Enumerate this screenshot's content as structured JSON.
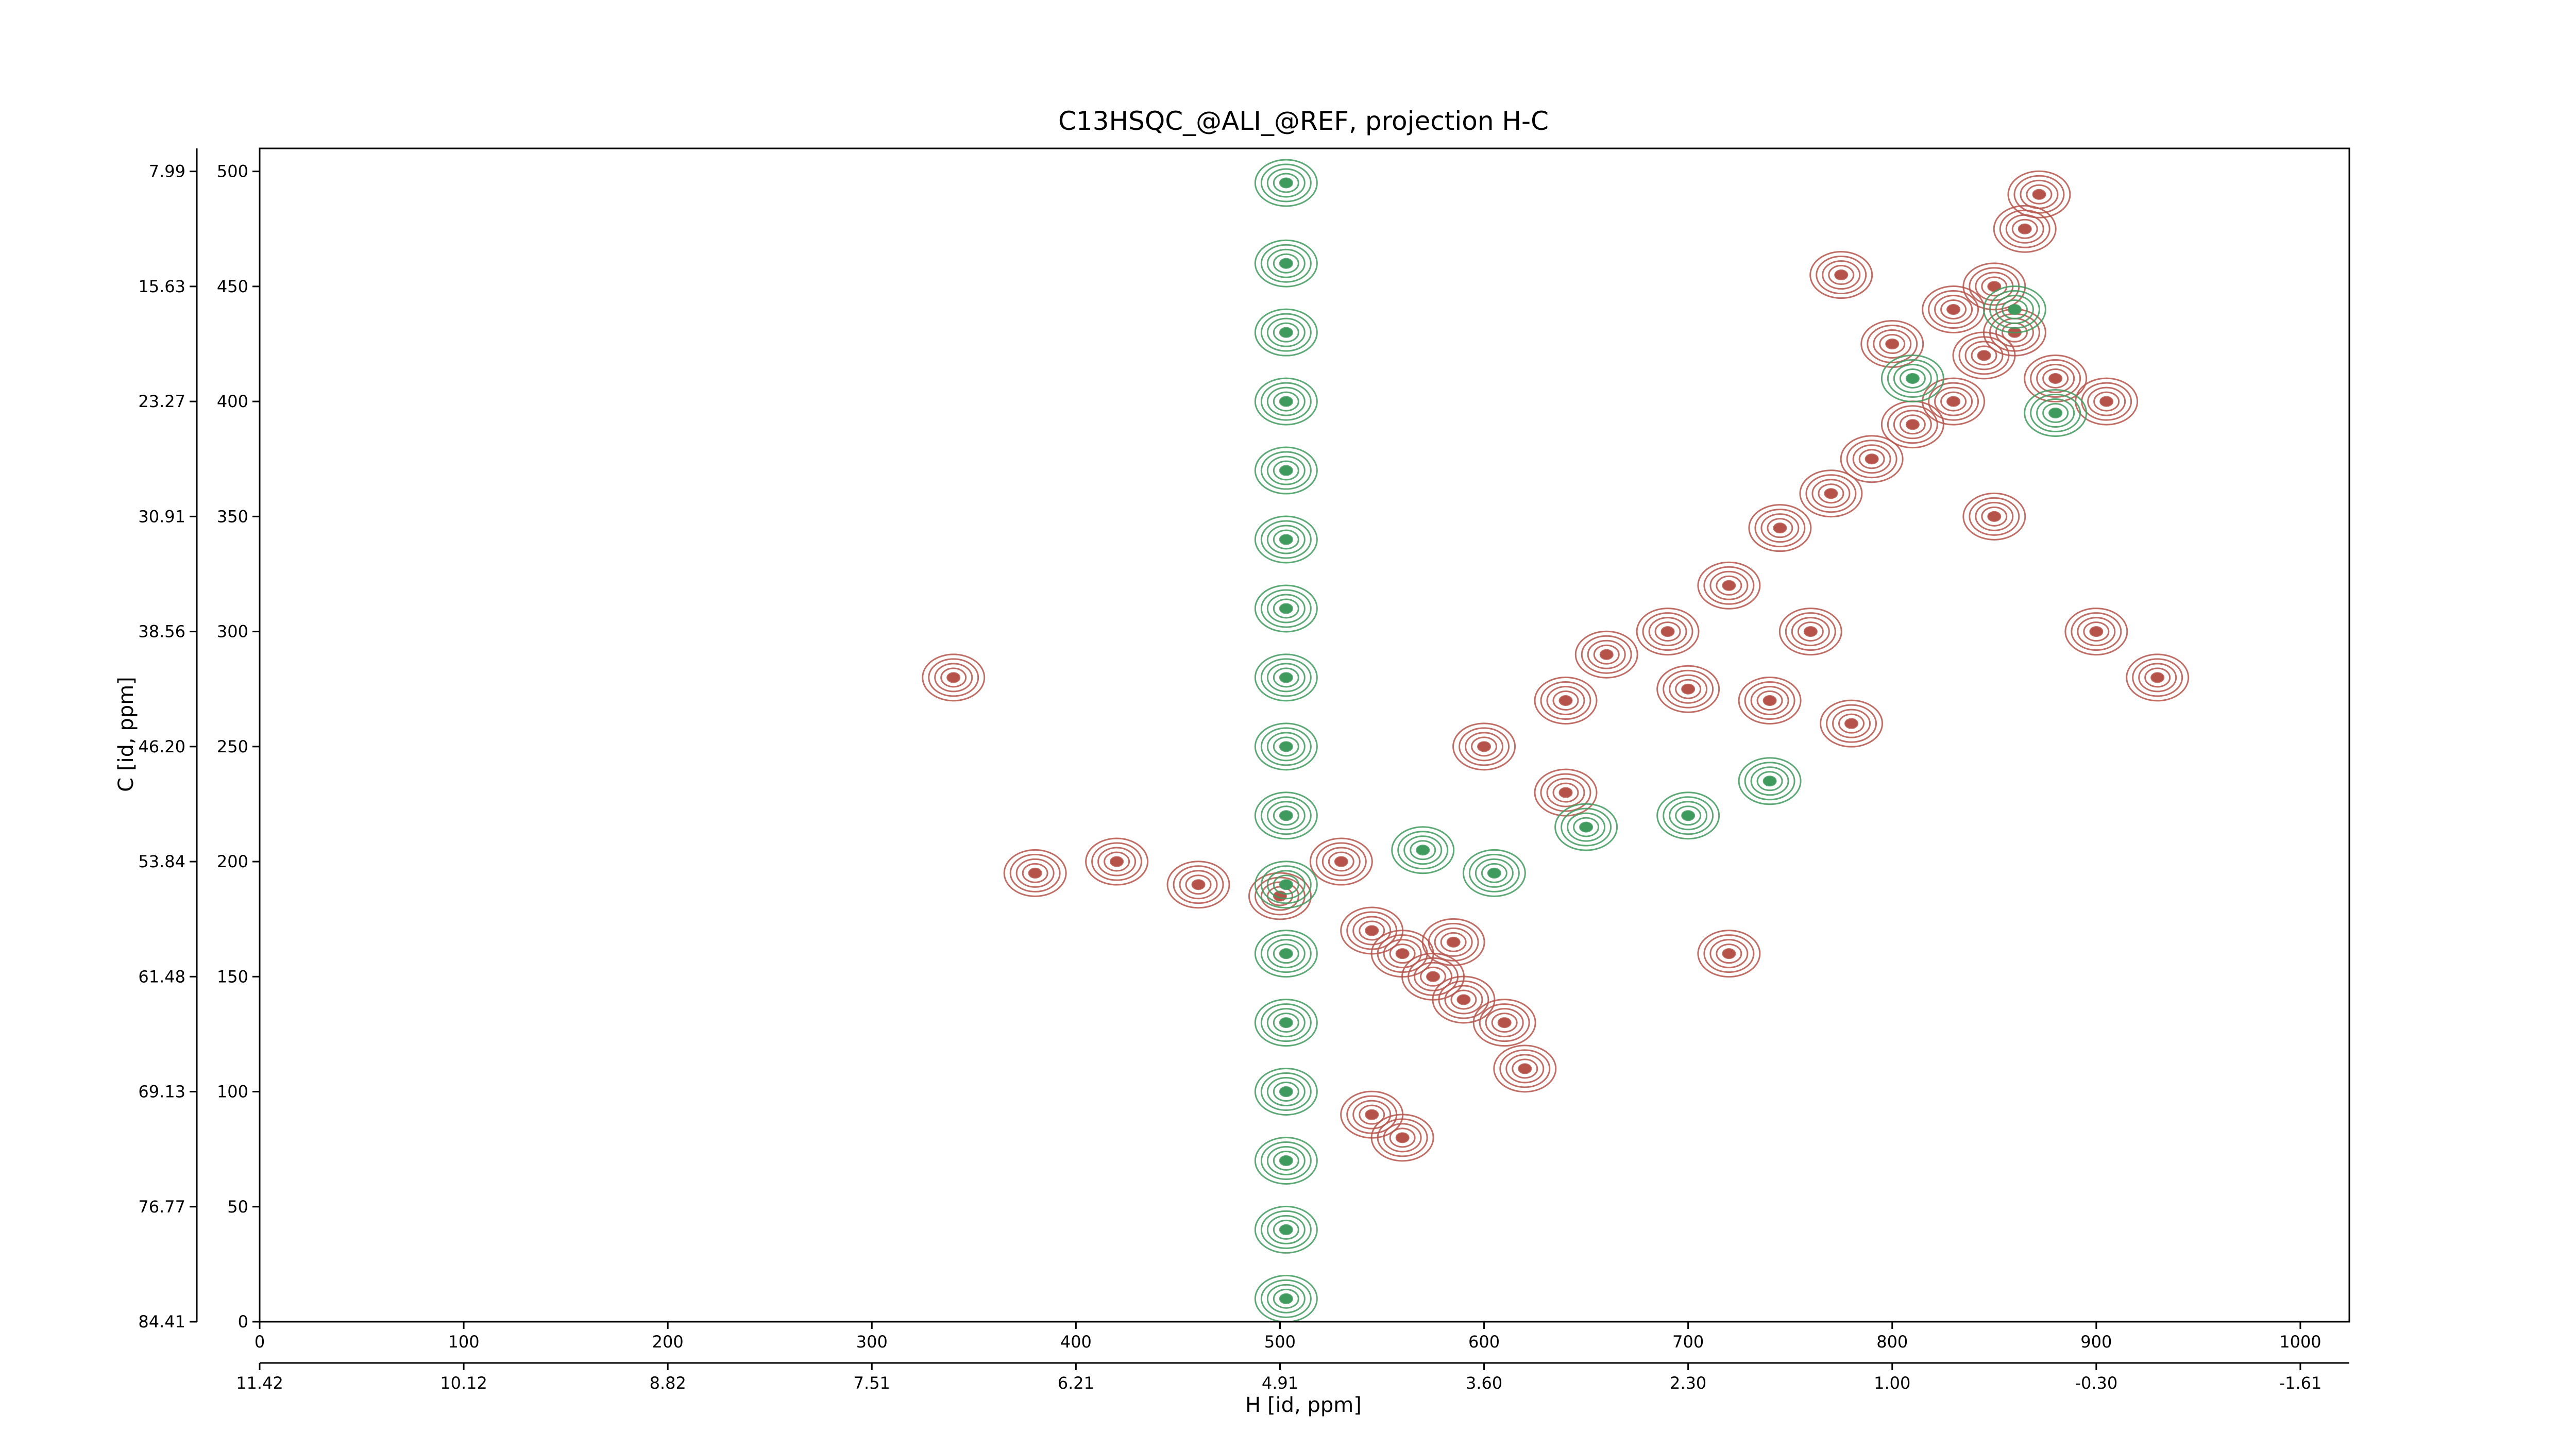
{
  "chart_data": {
    "type": "contour",
    "title": "C13HSQC_@ALI_@REF, projection H-C",
    "xlabel": "H [id, ppm]",
    "ylabel": "C [id, ppm]",
    "xlim": [
      0,
      1024
    ],
    "ylim": [
      0,
      510
    ],
    "xticks": [
      0,
      100,
      200,
      300,
      400,
      500,
      600,
      700,
      800,
      900,
      1000
    ],
    "yticks": [
      0,
      50,
      100,
      150,
      200,
      250,
      300,
      350,
      400,
      450,
      500
    ],
    "x2ticks": [
      {
        "value": 0,
        "label": "11.42"
      },
      {
        "value": 100,
        "label": "10.12"
      },
      {
        "value": 200,
        "label": "8.82"
      },
      {
        "value": 300,
        "label": "7.51"
      },
      {
        "value": 400,
        "label": "6.21"
      },
      {
        "value": 500,
        "label": "4.91"
      },
      {
        "value": 600,
        "label": "3.60"
      },
      {
        "value": 700,
        "label": "2.30"
      },
      {
        "value": 800,
        "label": "1.00"
      },
      {
        "value": 900,
        "label": "-0.30"
      },
      {
        "value": 1000,
        "label": "-1.61"
      }
    ],
    "y2ticks": [
      {
        "value": 0,
        "label": "84.41"
      },
      {
        "value": 50,
        "label": "76.77"
      },
      {
        "value": 100,
        "label": "69.13"
      },
      {
        "value": 150,
        "label": "61.48"
      },
      {
        "value": 200,
        "label": "53.84"
      },
      {
        "value": 250,
        "label": "46.20"
      },
      {
        "value": 300,
        "label": "38.56"
      },
      {
        "value": 350,
        "label": "30.91"
      },
      {
        "value": 400,
        "label": "23.27"
      },
      {
        "value": 450,
        "label": "15.63"
      },
      {
        "value": 500,
        "label": "7.99"
      }
    ],
    "series": [
      {
        "color": "#b5534a",
        "x": [
          340,
          380,
          420,
          460,
          500,
          530,
          545,
          560,
          575,
          590,
          610,
          620,
          545,
          560,
          585,
          640,
          660,
          690,
          720,
          745,
          770,
          790,
          810,
          830,
          845,
          860,
          880,
          850,
          830,
          800,
          775,
          865,
          872,
          900,
          905,
          740,
          700,
          760,
          850,
          930,
          720,
          780,
          600,
          640
        ],
        "y": [
          280,
          195,
          200,
          190,
          185,
          200,
          170,
          160,
          150,
          140,
          130,
          110,
          90,
          80,
          165,
          270,
          290,
          300,
          320,
          345,
          360,
          375,
          390,
          400,
          420,
          430,
          410,
          450,
          440,
          425,
          455,
          475,
          490,
          300,
          400,
          270,
          275,
          300,
          350,
          280,
          160,
          260,
          250,
          230
        ]
      },
      {
        "color": "#3f9a5e",
        "x": [
          503,
          503,
          503,
          503,
          503,
          503,
          503,
          503,
          503,
          503,
          503,
          503,
          503,
          503,
          503,
          503,
          503,
          570,
          605,
          650,
          700,
          740,
          810,
          860,
          880
        ],
        "y": [
          10,
          40,
          70,
          100,
          130,
          160,
          190,
          220,
          250,
          280,
          310,
          340,
          370,
          400,
          430,
          460,
          495,
          205,
          195,
          215,
          220,
          235,
          410,
          440,
          395
        ]
      }
    ]
  }
}
